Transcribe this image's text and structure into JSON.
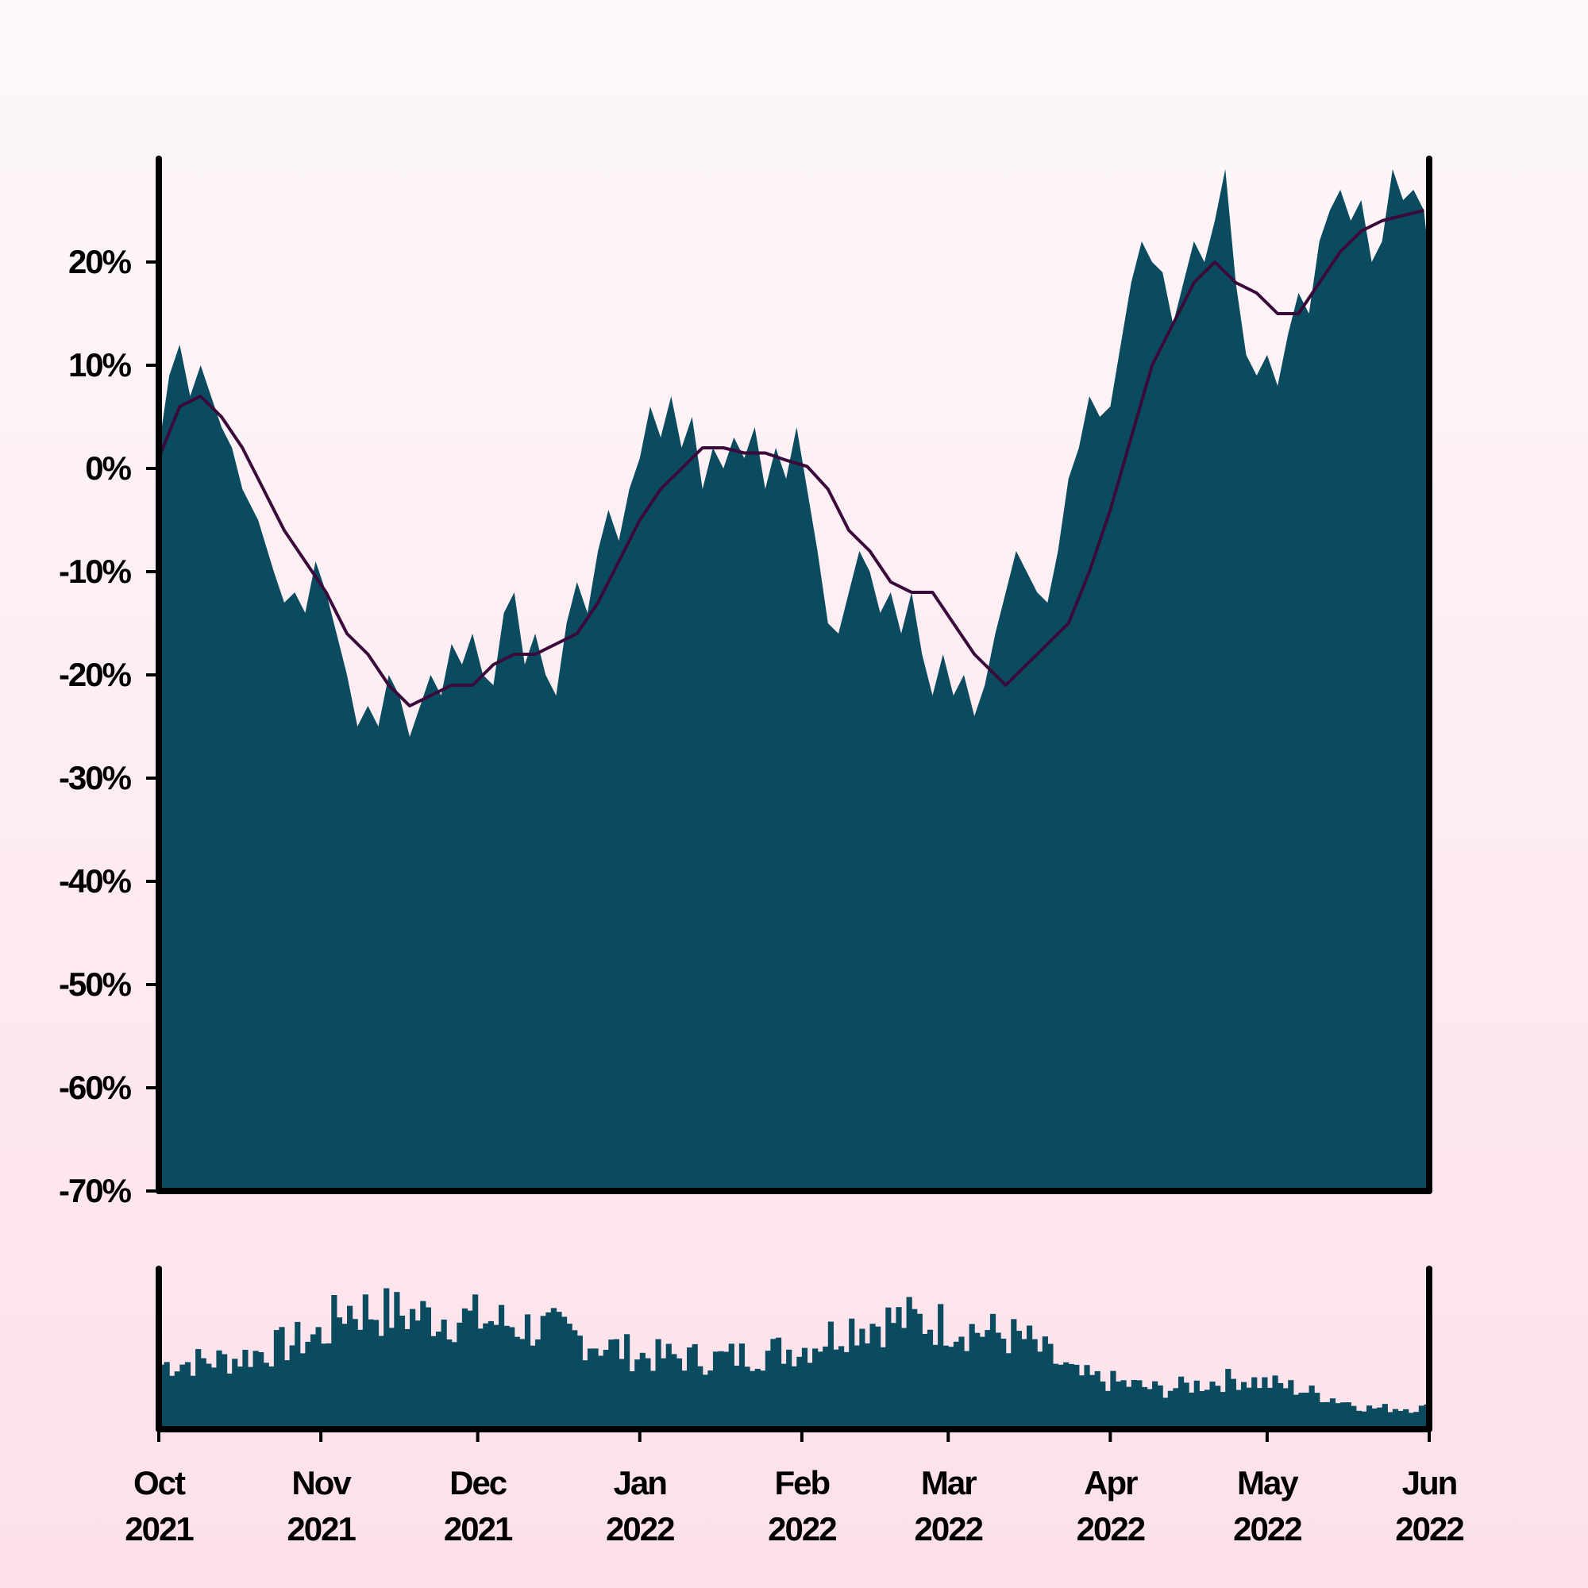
{
  "chart_data": [
    {
      "type": "area",
      "title": "",
      "xlabel": "",
      "ylabel": "",
      "ylim": [
        -70,
        30
      ],
      "y_tick_labels": [
        "20%",
        "10%",
        "0%",
        "-10%",
        "-20%",
        "-30%",
        "-40%",
        "-50%",
        "-60%",
        "-70%"
      ],
      "y_ticks": [
        20,
        10,
        0,
        -10,
        -20,
        -30,
        -40,
        -50,
        -60,
        -70
      ],
      "grid": false,
      "legend": "none",
      "series": [
        {
          "kind": "area",
          "color": "#0b4b5f",
          "points": [
            [
              "2021-10-01",
              2
            ],
            [
              "2021-10-03",
              9
            ],
            [
              "2021-10-05",
              12
            ],
            [
              "2021-10-07",
              7
            ],
            [
              "2021-10-09",
              10
            ],
            [
              "2021-10-11",
              7
            ],
            [
              "2021-10-13",
              4
            ],
            [
              "2021-10-15",
              2
            ],
            [
              "2021-10-17",
              -2
            ],
            [
              "2021-10-20",
              -5
            ],
            [
              "2021-10-23",
              -10
            ],
            [
              "2021-10-25",
              -13
            ],
            [
              "2021-10-27",
              -12
            ],
            [
              "2021-10-29",
              -14
            ],
            [
              "2021-10-31",
              -9
            ],
            [
              "2021-11-02",
              -12
            ],
            [
              "2021-11-04",
              -16
            ],
            [
              "2021-11-06",
              -20
            ],
            [
              "2021-11-08",
              -25
            ],
            [
              "2021-11-10",
              -23
            ],
            [
              "2021-11-12",
              -25
            ],
            [
              "2021-11-14",
              -20
            ],
            [
              "2021-11-16",
              -22
            ],
            [
              "2021-11-18",
              -26
            ],
            [
              "2021-11-20",
              -23
            ],
            [
              "2021-11-22",
              -20
            ],
            [
              "2021-11-24",
              -22
            ],
            [
              "2021-11-26",
              -17
            ],
            [
              "2021-11-28",
              -19
            ],
            [
              "2021-11-30",
              -16
            ],
            [
              "2021-12-02",
              -20
            ],
            [
              "2021-12-04",
              -21
            ],
            [
              "2021-12-06",
              -14
            ],
            [
              "2021-12-08",
              -12
            ],
            [
              "2021-12-10",
              -19
            ],
            [
              "2021-12-12",
              -16
            ],
            [
              "2021-12-14",
              -20
            ],
            [
              "2021-12-16",
              -22
            ],
            [
              "2021-12-18",
              -15
            ],
            [
              "2021-12-20",
              -11
            ],
            [
              "2021-12-22",
              -14
            ],
            [
              "2021-12-24",
              -8
            ],
            [
              "2021-12-26",
              -4
            ],
            [
              "2021-12-28",
              -7
            ],
            [
              "2021-12-30",
              -2
            ],
            [
              "2022-01-01",
              1
            ],
            [
              "2022-01-03",
              6
            ],
            [
              "2022-01-05",
              3
            ],
            [
              "2022-01-07",
              7
            ],
            [
              "2022-01-09",
              2
            ],
            [
              "2022-01-11",
              5
            ],
            [
              "2022-01-13",
              -2
            ],
            [
              "2022-01-15",
              2
            ],
            [
              "2022-01-17",
              0
            ],
            [
              "2022-01-19",
              3
            ],
            [
              "2022-01-21",
              1
            ],
            [
              "2022-01-23",
              4
            ],
            [
              "2022-01-25",
              -2
            ],
            [
              "2022-01-27",
              2
            ],
            [
              "2022-01-29",
              -1
            ],
            [
              "2022-01-31",
              4
            ],
            [
              "2022-02-02",
              -2
            ],
            [
              "2022-02-04",
              -8
            ],
            [
              "2022-02-06",
              -15
            ],
            [
              "2022-02-08",
              -16
            ],
            [
              "2022-02-10",
              -12
            ],
            [
              "2022-02-12",
              -8
            ],
            [
              "2022-02-14",
              -10
            ],
            [
              "2022-02-16",
              -14
            ],
            [
              "2022-02-18",
              -12
            ],
            [
              "2022-02-20",
              -16
            ],
            [
              "2022-02-22",
              -12
            ],
            [
              "2022-02-24",
              -18
            ],
            [
              "2022-02-26",
              -22
            ],
            [
              "2022-02-28",
              -18
            ],
            [
              "2022-03-02",
              -22
            ],
            [
              "2022-03-04",
              -20
            ],
            [
              "2022-03-06",
              -24
            ],
            [
              "2022-03-08",
              -21
            ],
            [
              "2022-03-10",
              -16
            ],
            [
              "2022-03-12",
              -12
            ],
            [
              "2022-03-14",
              -8
            ],
            [
              "2022-03-16",
              -10
            ],
            [
              "2022-03-18",
              -12
            ],
            [
              "2022-03-20",
              -13
            ],
            [
              "2022-03-22",
              -8
            ],
            [
              "2022-03-24",
              -1
            ],
            [
              "2022-03-26",
              2
            ],
            [
              "2022-03-28",
              7
            ],
            [
              "2022-03-30",
              5
            ],
            [
              "2022-04-01",
              6
            ],
            [
              "2022-04-03",
              12
            ],
            [
              "2022-04-05",
              18
            ],
            [
              "2022-04-07",
              22
            ],
            [
              "2022-04-09",
              20
            ],
            [
              "2022-04-11",
              19
            ],
            [
              "2022-04-13",
              14
            ],
            [
              "2022-04-15",
              18
            ],
            [
              "2022-04-17",
              22
            ],
            [
              "2022-04-19",
              20
            ],
            [
              "2022-04-21",
              24
            ],
            [
              "2022-04-23",
              29
            ],
            [
              "2022-04-25",
              18
            ],
            [
              "2022-04-27",
              11
            ],
            [
              "2022-04-29",
              9
            ],
            [
              "2022-05-01",
              11
            ],
            [
              "2022-05-03",
              8
            ],
            [
              "2022-05-05",
              13
            ],
            [
              "2022-05-07",
              17
            ],
            [
              "2022-05-09",
              15
            ],
            [
              "2022-05-11",
              22
            ],
            [
              "2022-05-13",
              25
            ],
            [
              "2022-05-15",
              27
            ],
            [
              "2022-05-17",
              24
            ],
            [
              "2022-05-19",
              26
            ],
            [
              "2022-05-21",
              20
            ],
            [
              "2022-05-23",
              22
            ],
            [
              "2022-05-25",
              29
            ],
            [
              "2022-05-27",
              26
            ],
            [
              "2022-05-29",
              27
            ],
            [
              "2022-05-31",
              25
            ],
            [
              "2022-06-01",
              20
            ]
          ]
        },
        {
          "kind": "line",
          "color": "#3a0a3a",
          "points": [
            [
              "2021-10-01",
              1
            ],
            [
              "2021-10-05",
              6
            ],
            [
              "2021-10-09",
              7
            ],
            [
              "2021-10-13",
              5
            ],
            [
              "2021-10-17",
              2
            ],
            [
              "2021-10-21",
              -2
            ],
            [
              "2021-10-25",
              -6
            ],
            [
              "2021-10-29",
              -9
            ],
            [
              "2021-11-02",
              -12
            ],
            [
              "2021-11-06",
              -16
            ],
            [
              "2021-11-10",
              -18
            ],
            [
              "2021-11-14",
              -21
            ],
            [
              "2021-11-18",
              -23
            ],
            [
              "2021-11-22",
              -22
            ],
            [
              "2021-11-26",
              -21
            ],
            [
              "2021-11-30",
              -21
            ],
            [
              "2021-12-04",
              -19
            ],
            [
              "2021-12-08",
              -18
            ],
            [
              "2021-12-12",
              -18
            ],
            [
              "2021-12-16",
              -17
            ],
            [
              "2021-12-20",
              -16
            ],
            [
              "2021-12-24",
              -13
            ],
            [
              "2021-12-28",
              -9
            ],
            [
              "2022-01-01",
              -5
            ],
            [
              "2022-01-05",
              -2
            ],
            [
              "2022-01-09",
              0
            ],
            [
              "2022-01-13",
              2
            ],
            [
              "2022-01-17",
              2
            ],
            [
              "2022-01-21",
              1.5
            ],
            [
              "2022-01-25",
              1.5
            ],
            [
              "2022-01-29",
              0.8
            ],
            [
              "2022-02-02",
              0.2
            ],
            [
              "2022-02-06",
              -2
            ],
            [
              "2022-02-10",
              -6
            ],
            [
              "2022-02-14",
              -8
            ],
            [
              "2022-02-18",
              -11
            ],
            [
              "2022-02-22",
              -12
            ],
            [
              "2022-02-26",
              -12
            ],
            [
              "2022-03-02",
              -15
            ],
            [
              "2022-03-06",
              -18
            ],
            [
              "2022-03-10",
              -20
            ],
            [
              "2022-03-12",
              -21
            ],
            [
              "2022-03-16",
              -19
            ],
            [
              "2022-03-20",
              -17
            ],
            [
              "2022-03-24",
              -15
            ],
            [
              "2022-03-28",
              -10
            ],
            [
              "2022-04-01",
              -4
            ],
            [
              "2022-04-05",
              3
            ],
            [
              "2022-04-09",
              10
            ],
            [
              "2022-04-13",
              14
            ],
            [
              "2022-04-17",
              18
            ],
            [
              "2022-04-21",
              20
            ],
            [
              "2022-04-25",
              18
            ],
            [
              "2022-04-29",
              17
            ],
            [
              "2022-05-03",
              15
            ],
            [
              "2022-05-07",
              15
            ],
            [
              "2022-05-11",
              18
            ],
            [
              "2022-05-15",
              21
            ],
            [
              "2022-05-19",
              23
            ],
            [
              "2022-05-23",
              24
            ],
            [
              "2022-05-27",
              24.5
            ],
            [
              "2022-05-31",
              25
            ]
          ]
        }
      ]
    },
    {
      "type": "bar",
      "title": "",
      "xlabel": "",
      "ylabel": "",
      "color": "#0b4b5f",
      "volume_profile": [
        [
          "2021-10-01",
          0.46
        ],
        [
          "2021-10-15",
          0.5
        ],
        [
          "2021-10-25",
          0.6
        ],
        [
          "2021-11-01",
          0.68
        ],
        [
          "2021-11-05",
          0.86
        ],
        [
          "2021-11-15",
          0.82
        ],
        [
          "2021-12-01",
          0.78
        ],
        [
          "2021-12-15",
          0.7
        ],
        [
          "2022-01-01",
          0.52
        ],
        [
          "2022-01-15",
          0.5
        ],
        [
          "2022-02-01",
          0.58
        ],
        [
          "2022-02-10",
          0.74
        ],
        [
          "2022-02-20",
          0.78
        ],
        [
          "2022-03-01",
          0.74
        ],
        [
          "2022-03-15",
          0.64
        ],
        [
          "2022-03-25",
          0.38
        ],
        [
          "2022-04-10",
          0.28
        ],
        [
          "2022-04-25",
          0.36
        ],
        [
          "2022-05-05",
          0.3
        ],
        [
          "2022-05-20",
          0.15
        ],
        [
          "2022-06-01",
          0.15
        ]
      ]
    }
  ],
  "x_axis": {
    "ticks": [
      {
        "date": "2021-10-01",
        "month": "Oct",
        "year": "2021"
      },
      {
        "date": "2021-11-01",
        "month": "Nov",
        "year": "2021"
      },
      {
        "date": "2021-12-01",
        "month": "Dec",
        "year": "2021"
      },
      {
        "date": "2022-01-01",
        "month": "Jan",
        "year": "2022"
      },
      {
        "date": "2022-02-01",
        "month": "Feb",
        "year": "2022"
      },
      {
        "date": "2022-03-01",
        "month": "Mar",
        "year": "2022"
      },
      {
        "date": "2022-04-01",
        "month": "Apr",
        "year": "2022"
      },
      {
        "date": "2022-05-01",
        "month": "May",
        "year": "2022"
      },
      {
        "date": "2022-06-01",
        "month": "Jun",
        "year": "2022"
      }
    ]
  }
}
